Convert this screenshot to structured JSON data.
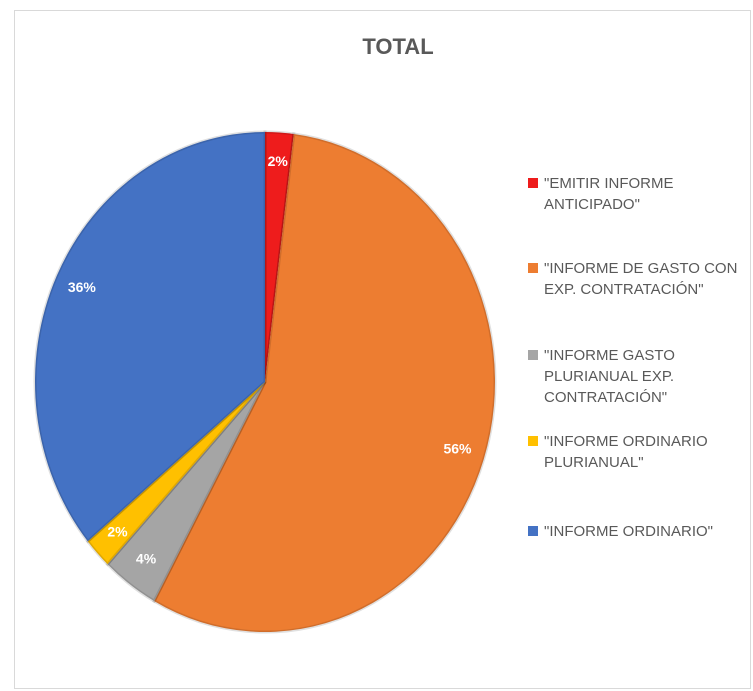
{
  "chart_data": {
    "type": "pie",
    "title": "TOTAL",
    "categories": [
      "\"EMITIR INFORME ANTICIPADO\"",
      "\"INFORME DE GASTO CON EXP. CONTRATACIÓN\"",
      "\"INFORME GASTO PLURIANUAL EXP. CONTRATACIÓN\"",
      "\"INFORME ORDINARIO PLURIANUAL\"",
      "\"INFORME ORDINARIO\""
    ],
    "values": [
      2,
      56,
      4,
      2,
      36
    ],
    "value_labels": [
      "2%",
      "56%",
      "4%",
      "2%",
      "36%"
    ],
    "colors": [
      "#ee1c1c",
      "#ed7d31",
      "#a5a5a5",
      "#ffc000",
      "#4472c4"
    ],
    "legend": "right"
  }
}
